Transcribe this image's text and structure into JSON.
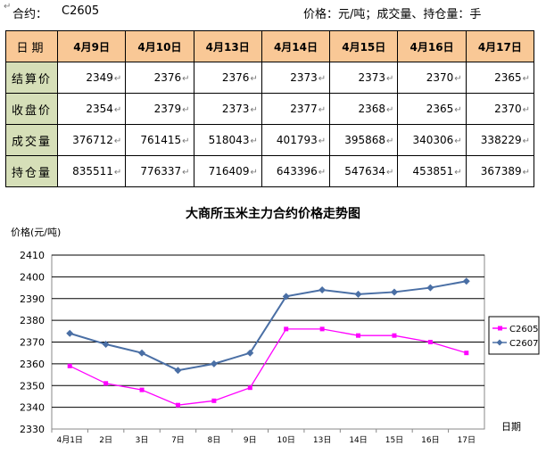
{
  "header": {
    "contract_label": "合约：",
    "contract": "C2605",
    "units": "价格：元/吨；成交量、持仓量：手",
    "mark": "↵"
  },
  "table": {
    "corner": "日期",
    "dates": [
      "4月9日",
      "4月10日",
      "4月13日",
      "4月14日",
      "4月15日",
      "4月16日",
      "4月17日"
    ],
    "rows": [
      {
        "label": "结算价",
        "values": [
          "2349",
          "2376",
          "2376",
          "2373",
          "2373",
          "2370",
          "2365"
        ]
      },
      {
        "label": "收盘价",
        "values": [
          "2354",
          "2379",
          "2373",
          "2377",
          "2368",
          "2365",
          "2370"
        ]
      },
      {
        "label": "成交量",
        "values": [
          "376712",
          "761415",
          "518043",
          "401793",
          "395868",
          "340306",
          "338229"
        ]
      },
      {
        "label": "持仓量",
        "values": [
          "835511",
          "776337",
          "716409",
          "643396",
          "547634",
          "453851",
          "367389"
        ]
      }
    ]
  },
  "chart_data": {
    "type": "line",
    "title": "大商所玉米主力合约价格走势图",
    "ylabel": "价格(元/吨)",
    "xlabel": "日期",
    "categories": [
      "4月1日",
      "2日",
      "3日",
      "7日",
      "8日",
      "9日",
      "10日",
      "13日",
      "14日",
      "15日",
      "16日",
      "17日"
    ],
    "ylim": [
      2330,
      2410
    ],
    "yticks": [
      2330,
      2340,
      2350,
      2360,
      2370,
      2380,
      2390,
      2400,
      2410
    ],
    "grid": true,
    "legend_position": "right",
    "series": [
      {
        "name": "C2605",
        "color": "#ff00ff",
        "marker": "square",
        "values": [
          2359,
          2351,
          2348,
          2341,
          2343,
          2349,
          2376,
          2376,
          2373,
          2373,
          2370,
          2365
        ]
      },
      {
        "name": "C2607",
        "color": "#4a6fa5",
        "marker": "diamond",
        "values": [
          2374,
          2369,
          2365,
          2357,
          2360,
          2365,
          2391,
          2394,
          2392,
          2393,
          2395,
          2398
        ]
      }
    ]
  }
}
